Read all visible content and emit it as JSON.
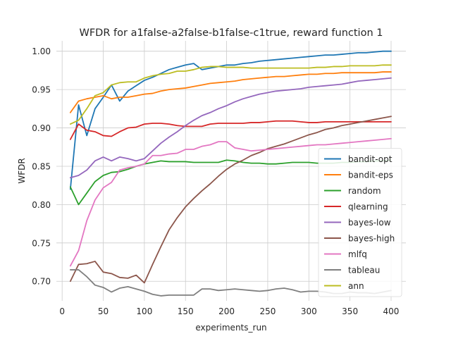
{
  "chart_data": {
    "type": "line",
    "title": "WFDR for a1false-a2false-b1false-c1true, reward function 1",
    "xlabel": "experiments_run",
    "ylabel": "WFDR",
    "xlim": [
      -7,
      418
    ],
    "ylim": [
      0.6745,
      1.0135
    ],
    "xticks": [
      0,
      50,
      100,
      150,
      200,
      250,
      300,
      350,
      400
    ],
    "xtick_labels": [
      "0",
      "50",
      "100",
      "150",
      "200",
      "250",
      "300",
      "350",
      "400"
    ],
    "yticks": [
      0.7,
      0.75,
      0.8,
      0.85,
      0.9,
      0.95,
      1.0
    ],
    "ytick_labels": [
      "0.70",
      "0.75",
      "0.80",
      "0.85",
      "0.90",
      "0.95",
      "1.00"
    ],
    "grid": true,
    "legend_position": "lower-right",
    "x": [
      10,
      20,
      30,
      40,
      50,
      60,
      70,
      80,
      90,
      100,
      110,
      120,
      130,
      140,
      150,
      160,
      170,
      180,
      190,
      200,
      210,
      220,
      230,
      240,
      250,
      260,
      270,
      280,
      290,
      300,
      310,
      320,
      330,
      340,
      350,
      360,
      370,
      380,
      390,
      400
    ],
    "series": [
      {
        "name": "bandit-opt",
        "color": "#1f77b4",
        "values": [
          0.82,
          0.93,
          0.89,
          0.925,
          0.94,
          0.956,
          0.935,
          0.948,
          0.955,
          0.962,
          0.966,
          0.971,
          0.976,
          0.979,
          0.982,
          0.984,
          0.976,
          0.978,
          0.98,
          0.982,
          0.982,
          0.984,
          0.985,
          0.987,
          0.988,
          0.989,
          0.99,
          0.991,
          0.992,
          0.993,
          0.994,
          0.995,
          0.995,
          0.996,
          0.997,
          0.998,
          0.998,
          0.999,
          1.0,
          1.0
        ]
      },
      {
        "name": "bandit-eps",
        "color": "#ff7f0e",
        "values": [
          0.92,
          0.935,
          0.938,
          0.94,
          0.942,
          0.938,
          0.94,
          0.94,
          0.942,
          0.944,
          0.945,
          0.948,
          0.95,
          0.951,
          0.952,
          0.954,
          0.956,
          0.958,
          0.959,
          0.96,
          0.961,
          0.963,
          0.964,
          0.965,
          0.966,
          0.967,
          0.967,
          0.968,
          0.969,
          0.97,
          0.97,
          0.971,
          0.971,
          0.972,
          0.972,
          0.972,
          0.972,
          0.972,
          0.973,
          0.973
        ]
      },
      {
        "name": "random",
        "color": "#2ca02c",
        "values": [
          0.823,
          0.8,
          0.815,
          0.83,
          0.838,
          0.842,
          0.843,
          0.846,
          0.85,
          0.853,
          0.855,
          0.857,
          0.856,
          0.856,
          0.856,
          0.855,
          0.855,
          0.855,
          0.855,
          0.858,
          0.857,
          0.855,
          0.854,
          0.854,
          0.853,
          0.853,
          0.854,
          0.855,
          0.855,
          0.855,
          0.854,
          0.854,
          0.854,
          0.855,
          0.855,
          0.856,
          0.856,
          0.857,
          0.857,
          0.858
        ]
      },
      {
        "name": "qlearning",
        "color": "#d62728",
        "values": [
          0.885,
          0.905,
          0.897,
          0.895,
          0.89,
          0.889,
          0.895,
          0.9,
          0.901,
          0.905,
          0.906,
          0.906,
          0.905,
          0.903,
          0.902,
          0.902,
          0.902,
          0.905,
          0.906,
          0.906,
          0.906,
          0.906,
          0.907,
          0.907,
          0.908,
          0.909,
          0.909,
          0.909,
          0.908,
          0.907,
          0.907,
          0.908,
          0.908,
          0.908,
          0.908,
          0.908,
          0.908,
          0.908,
          0.908,
          0.908
        ]
      },
      {
        "name": "bayes-low",
        "color": "#9467bd",
        "values": [
          0.835,
          0.838,
          0.845,
          0.857,
          0.862,
          0.857,
          0.862,
          0.86,
          0.857,
          0.86,
          0.87,
          0.88,
          0.888,
          0.895,
          0.903,
          0.91,
          0.916,
          0.92,
          0.925,
          0.929,
          0.934,
          0.938,
          0.941,
          0.944,
          0.946,
          0.948,
          0.949,
          0.95,
          0.951,
          0.953,
          0.954,
          0.955,
          0.956,
          0.957,
          0.959,
          0.961,
          0.962,
          0.963,
          0.964,
          0.965
        ]
      },
      {
        "name": "bayes-high",
        "color": "#8c564b",
        "values": [
          0.7,
          0.722,
          0.723,
          0.726,
          0.712,
          0.71,
          0.705,
          0.704,
          0.708,
          0.698,
          0.722,
          0.745,
          0.767,
          0.783,
          0.797,
          0.808,
          0.818,
          0.827,
          0.837,
          0.846,
          0.853,
          0.858,
          0.864,
          0.868,
          0.873,
          0.876,
          0.879,
          0.883,
          0.887,
          0.891,
          0.894,
          0.898,
          0.9,
          0.903,
          0.905,
          0.907,
          0.909,
          0.911,
          0.913,
          0.915
        ]
      },
      {
        "name": "mlfq",
        "color": "#e377c2",
        "values": [
          0.72,
          0.74,
          0.779,
          0.806,
          0.822,
          0.829,
          0.845,
          0.848,
          0.85,
          0.853,
          0.864,
          0.864,
          0.866,
          0.867,
          0.872,
          0.872,
          0.876,
          0.878,
          0.882,
          0.882,
          0.874,
          0.872,
          0.87,
          0.871,
          0.872,
          0.873,
          0.874,
          0.875,
          0.876,
          0.877,
          0.878,
          0.878,
          0.879,
          0.88,
          0.881,
          0.882,
          0.883,
          0.884,
          0.885,
          0.886
        ]
      },
      {
        "name": "tableau",
        "color": "#7f7f7f",
        "values": [
          0.715,
          0.715,
          0.706,
          0.695,
          0.692,
          0.686,
          0.691,
          0.693,
          0.69,
          0.687,
          0.683,
          0.681,
          0.682,
          0.682,
          0.682,
          0.682,
          0.69,
          0.69,
          0.688,
          0.689,
          0.69,
          0.689,
          0.688,
          0.687,
          0.688,
          0.69,
          0.691,
          0.689,
          0.686,
          0.687,
          0.687,
          0.686,
          0.684,
          0.684,
          0.686,
          0.685,
          0.685,
          0.684,
          0.686,
          0.688
        ]
      },
      {
        "name": "ann",
        "color": "#bcbd22",
        "values": [
          0.905,
          0.91,
          0.925,
          0.942,
          0.946,
          0.956,
          0.959,
          0.96,
          0.96,
          0.965,
          0.968,
          0.97,
          0.971,
          0.974,
          0.974,
          0.976,
          0.979,
          0.98,
          0.98,
          0.979,
          0.979,
          0.979,
          0.978,
          0.978,
          0.978,
          0.978,
          0.978,
          0.978,
          0.978,
          0.978,
          0.979,
          0.979,
          0.98,
          0.98,
          0.981,
          0.981,
          0.981,
          0.981,
          0.982,
          0.982
        ]
      }
    ]
  }
}
